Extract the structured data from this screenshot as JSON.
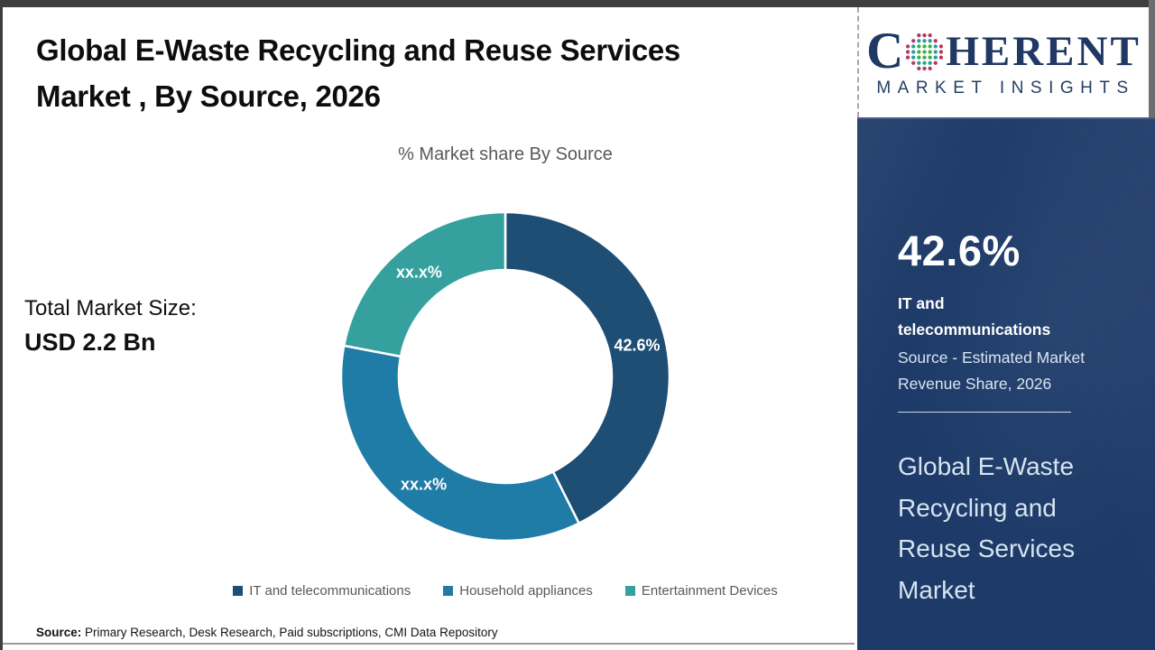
{
  "header": {
    "title": "Global E-Waste Recycling and Reuse Services Market , By Source, 2026"
  },
  "total_market": {
    "label": "Total Market Size:",
    "value": "USD 2.2 Bn"
  },
  "chart_data": {
    "type": "pie",
    "subtype": "donut",
    "title": "% Market share By Source",
    "categories": [
      "IT and telecommunications",
      "Household appliances",
      "Entertainment Devices"
    ],
    "values": [
      42.6,
      35.4,
      22.0
    ],
    "value_labels": [
      "42.6%",
      "xx.x%",
      "xx.x%"
    ],
    "colors": [
      "#1f4e74",
      "#1e7ca6",
      "#35a09e"
    ],
    "legend_position": "bottom",
    "donut_hole_ratio": 0.65,
    "start_angle_deg": 0
  },
  "source_note": {
    "prefix": "Source:",
    "text": " Primary Research, Desk Research, Paid subscriptions, CMI Data Repository"
  },
  "logo": {
    "part1": "C",
    "part2": "HERENT",
    "subtitle": "MARKET INSIGHTS",
    "brand_color": "#1f3864",
    "sphere_colors": {
      "inner": "#3fae49",
      "mid": "#2e9b9b",
      "outer": "#b23a5e"
    }
  },
  "sidebar": {
    "background_color": "#1d3a68",
    "stat_value": "42.6%",
    "stat_label": "IT and telecommunications",
    "stat_description": "Source - Estimated Market Revenue Share, 2026",
    "market_name": "Global E-Waste Recycling and Reuse Services Market"
  }
}
